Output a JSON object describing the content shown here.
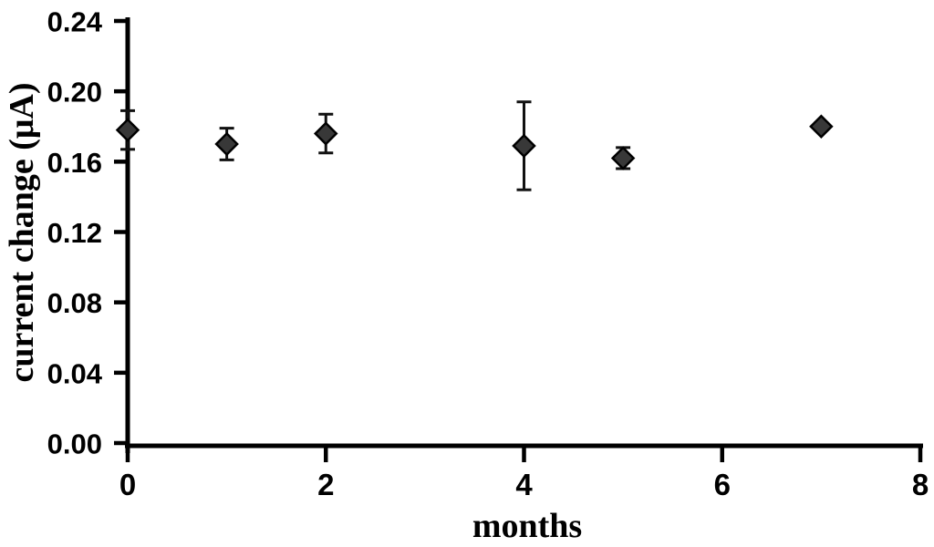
{
  "chart_data": {
    "type": "scatter",
    "title": "",
    "xlabel": "months",
    "ylabel": "current change (μA)",
    "xlim": [
      0,
      8
    ],
    "ylim": [
      0,
      0.24
    ],
    "x_ticks": [
      0,
      2,
      4,
      6,
      8
    ],
    "x_tick_labels": [
      "0",
      "2",
      "4",
      "6",
      "8"
    ],
    "y_ticks": [
      0.0,
      0.04,
      0.08,
      0.12,
      0.16,
      0.2,
      0.24
    ],
    "y_tick_labels": [
      "0.00",
      "0.04",
      "0.08",
      "0.12",
      "0.16",
      "0.20",
      "0.24"
    ],
    "grid": false,
    "legend": null,
    "background_color": "#ffffff",
    "colors": {
      "axis": "#000000",
      "tick": "#000000",
      "text": "#000000",
      "marker_fill": "#383838",
      "marker_stroke": "#000000",
      "error_bar": "#111111"
    },
    "series": [
      {
        "name": "current change",
        "marker": "diamond",
        "x": [
          0,
          1,
          2,
          4,
          5,
          7
        ],
        "y": [
          0.178,
          0.17,
          0.176,
          0.169,
          0.162,
          0.18
        ],
        "y_err": [
          0.011,
          0.009,
          0.011,
          0.025,
          0.006,
          0.002
        ]
      }
    ]
  }
}
